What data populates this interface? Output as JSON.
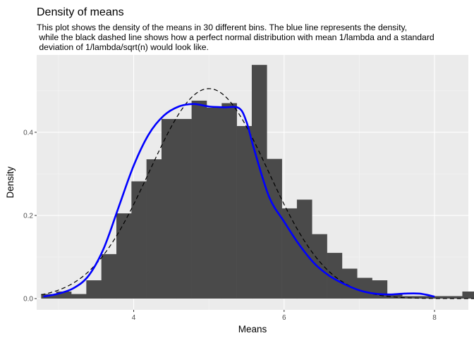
{
  "chart_data": {
    "type": "bar",
    "title": "Density of means",
    "subtitle": [
      "This plot shows the density of the means in 30 different bins. The blue line represents the density,",
      " while the black dashed line shows how a perfect normal distribution with mean 1/lambda and a standard",
      " deviation of 1/lambda/sqrt(n) would look like."
    ],
    "xlabel": "Means",
    "ylabel": "Density",
    "xlim": [
      2.71,
      8.45
    ],
    "ylim": [
      -0.027,
      0.586
    ],
    "x_ticks": [
      4,
      6,
      8
    ],
    "x_tick_labels": [
      "4",
      "6",
      "8"
    ],
    "y_ticks": [
      0.0,
      0.2,
      0.4
    ],
    "y_tick_labels": [
      "0.0",
      "0.2",
      "0.4"
    ],
    "grid": true,
    "histogram": {
      "bin_width": 0.2,
      "x_start": 2.77,
      "values": [
        0.011,
        0.017,
        0.011,
        0.044,
        0.107,
        0.205,
        0.282,
        0.335,
        0.432,
        0.432,
        0.476,
        0.459,
        0.47,
        0.415,
        0.562,
        0.336,
        0.217,
        0.238,
        0.155,
        0.11,
        0.072,
        0.05,
        0.044,
        0.011,
        0.006,
        0.006,
        0.006,
        0.006,
        0.017,
        0.006
      ],
      "color": "#4a4a4a"
    },
    "series": [
      {
        "name": "density",
        "style": "solid",
        "color": "#0000ff",
        "x": [
          2.8,
          3.0,
          3.2,
          3.4,
          3.6,
          3.8,
          4.0,
          4.2,
          4.4,
          4.6,
          4.8,
          5.0,
          5.2,
          5.4,
          5.5,
          5.6,
          5.8,
          6.0,
          6.2,
          6.4,
          6.6,
          6.8,
          7.0,
          7.2,
          7.4,
          7.6,
          7.8,
          8.0
        ],
        "y": [
          0.005,
          0.012,
          0.025,
          0.055,
          0.12,
          0.22,
          0.32,
          0.395,
          0.44,
          0.462,
          0.468,
          0.462,
          0.46,
          0.458,
          0.425,
          0.36,
          0.245,
          0.185,
          0.13,
          0.085,
          0.055,
          0.035,
          0.02,
          0.012,
          0.01,
          0.012,
          0.012,
          0.005
        ]
      },
      {
        "name": "normal",
        "style": "dashed",
        "color": "#000000",
        "mean": 5,
        "sd": 0.79
      }
    ]
  }
}
